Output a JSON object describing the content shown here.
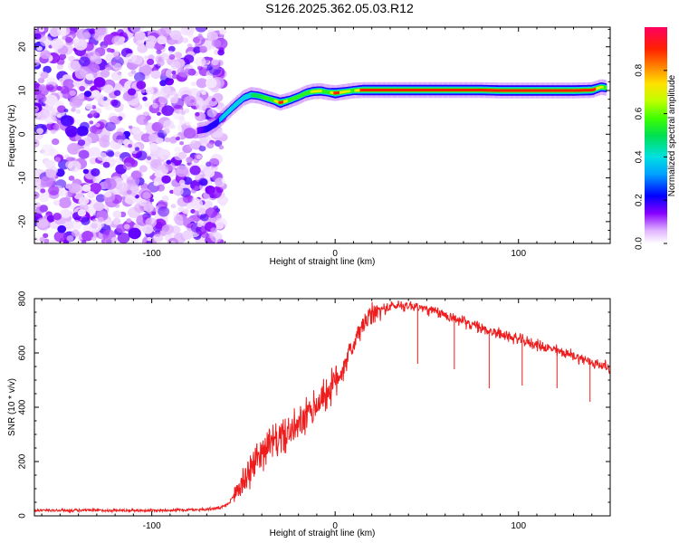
{
  "title": "S126.2025.362.05.03.R12",
  "chart_data": [
    {
      "type": "heatmap",
      "xlabel": "Height of straight line (km)",
      "ylabel": "Frequency (Hz)",
      "xlim": [
        -164,
        150
      ],
      "ylim": [
        -25,
        24.5
      ],
      "xticks": [
        -100,
        0,
        100
      ],
      "yticks": [
        -20,
        -10,
        0,
        10,
        20
      ],
      "noise_region_x": [
        -164,
        -61
      ],
      "noise_region_y": [
        -25,
        24.5
      ],
      "ridge": {
        "x": [
          -75,
          -70,
          -65,
          -60,
          -55,
          -50,
          -46,
          -42,
          -38,
          -34,
          -30,
          -25,
          -20,
          -16,
          -12,
          -8,
          -4,
          0,
          5,
          10,
          15,
          20,
          30,
          40,
          50,
          60,
          70,
          80,
          90,
          100,
          110,
          120,
          130,
          140,
          145,
          148
        ],
        "y": [
          0.8,
          1.2,
          2.5,
          4.5,
          6.5,
          8.3,
          9.0,
          8.8,
          8.3,
          7.8,
          7.2,
          7.8,
          8.6,
          9.4,
          9.8,
          9.9,
          9.6,
          9.4,
          9.7,
          10.0,
          10.1,
          10.1,
          10.1,
          10.1,
          10.1,
          10.1,
          10.1,
          10.1,
          10.0,
          10.0,
          10.0,
          10.0,
          10.0,
          10.1,
          10.8,
          10.6
        ],
        "amplitude": [
          0.15,
          0.2,
          0.3,
          0.4,
          0.5,
          0.45,
          0.5,
          0.5,
          0.55,
          0.6,
          0.95,
          0.6,
          0.55,
          0.6,
          0.7,
          0.7,
          0.55,
          0.95,
          0.7,
          0.65,
          0.95,
          0.95,
          0.95,
          0.95,
          0.95,
          0.95,
          0.95,
          0.95,
          0.95,
          0.95,
          0.95,
          0.95,
          0.95,
          0.95,
          0.7,
          0.6
        ]
      },
      "colorbar": {
        "label": "Normalized spectral amplitude",
        "range": [
          0.0,
          1.0
        ],
        "ticks": [
          "0.0",
          "0.2",
          "0.4",
          "0.6",
          "0.8"
        ],
        "tick_values": [
          0.0,
          0.2,
          0.4,
          0.6,
          0.8
        ]
      }
    },
    {
      "type": "line",
      "xlabel": "Height of straight line (km)",
      "ylabel": "SNR (10 * v/v)",
      "xlim": [
        -164,
        150
      ],
      "ylim": [
        0,
        800
      ],
      "xticks": [
        -100,
        0,
        100
      ],
      "yticks": [
        0,
        200,
        400,
        600,
        800
      ],
      "color": "#ff0000",
      "series": [
        {
          "x": [
            -164,
            -140,
            -120,
            -100,
            -80,
            -70,
            -62,
            -58,
            -54,
            -50,
            -46,
            -42,
            -38,
            -34,
            -30,
            -25,
            -20,
            -15,
            -10,
            -5,
            0,
            5,
            10,
            15,
            20,
            25,
            30,
            35,
            40,
            45,
            50,
            60,
            70,
            80,
            90,
            100,
            110,
            120,
            130,
            140,
            150
          ],
          "y": [
            20,
            20,
            20,
            20,
            22,
            24,
            30,
            45,
            90,
            130,
            170,
            220,
            255,
            270,
            290,
            305,
            330,
            370,
            410,
            450,
            490,
            560,
            630,
            700,
            740,
            760,
            770,
            775,
            775,
            770,
            760,
            740,
            715,
            690,
            670,
            650,
            630,
            610,
            590,
            565,
            545
          ],
          "spikes": [
            {
              "x": 45,
              "y": 560
            },
            {
              "x": 65,
              "y": 540
            },
            {
              "x": 84,
              "y": 470
            },
            {
              "x": 102,
              "y": 480
            },
            {
              "x": 121,
              "y": 470
            },
            {
              "x": 139,
              "y": 420
            }
          ]
        }
      ]
    }
  ]
}
